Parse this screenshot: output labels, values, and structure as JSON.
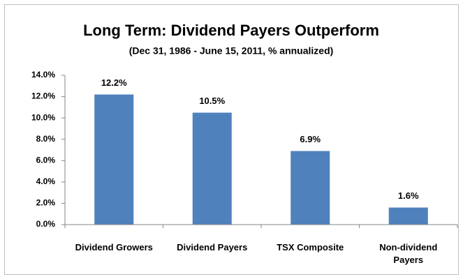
{
  "chart_data": {
    "type": "bar",
    "title": "Long Term: Dividend Payers Outperform",
    "subtitle": "(Dec 31, 1986 - June 15, 2011, % annualized)",
    "categories": [
      "Dividend Growers",
      "Dividend Payers",
      "TSX Composite",
      "Non-dividend Payers"
    ],
    "values": [
      12.2,
      10.5,
      6.9,
      1.6
    ],
    "value_labels": [
      "12.2%",
      "10.5%",
      "6.9%",
      "1.6%"
    ],
    "color": "#4f81bd",
    "ylim": [
      0,
      14
    ],
    "yticks": [
      {
        "value": 0,
        "label": "0.0%"
      },
      {
        "value": 2,
        "label": "2.0%"
      },
      {
        "value": 4,
        "label": "4.0%"
      },
      {
        "value": 6,
        "label": "6.0%"
      },
      {
        "value": 8,
        "label": "8.0%"
      },
      {
        "value": 10,
        "label": "10.0%"
      },
      {
        "value": 12,
        "label": "12.0%"
      },
      {
        "value": 14,
        "label": "14.0%"
      }
    ],
    "grid": false
  }
}
